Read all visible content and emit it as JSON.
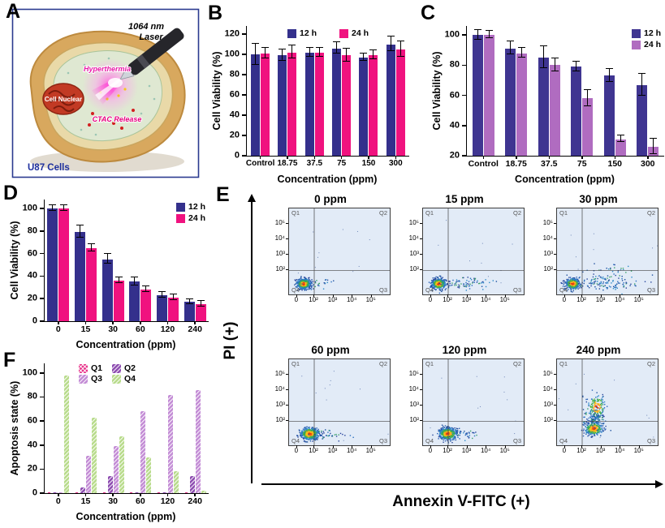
{
  "figure": {
    "panel_letters": {
      "a": "A",
      "b": "B",
      "c": "C",
      "d": "D",
      "e": "E",
      "f": "F"
    },
    "panel_a": {
      "laser_line1": "1064 nm",
      "laser_line2": "Laser",
      "hyperthermia": "Hyperthermia",
      "nucleus": "Cell Nuclear",
      "ctac": "CTAC Release",
      "cells": "U87 Cells"
    }
  },
  "chart_data": [
    {
      "id": "B",
      "type": "bar",
      "categories": [
        "Control",
        "18.75",
        "37.5",
        "75",
        "150",
        "300"
      ],
      "series": [
        {
          "name": "12 h",
          "color": "#34308c",
          "values": [
            100,
            99,
            102,
            106,
            97,
            110
          ],
          "errors": [
            10,
            5,
            4,
            5,
            3,
            7
          ]
        },
        {
          "name": "24 h",
          "color": "#f0127f",
          "values": [
            101,
            102,
            102,
            99,
            99,
            105
          ],
          "errors": [
            5,
            6,
            4,
            6,
            4,
            7
          ]
        }
      ],
      "xlabel": "Concentration (ppm)",
      "ylabel": "Cell Viability (%)",
      "ylim": [
        0,
        128
      ],
      "yticks": [
        0,
        20,
        40,
        60,
        80,
        100,
        120
      ],
      "legend_position": "top-center"
    },
    {
      "id": "C",
      "type": "bar",
      "categories": [
        "Control",
        "18.75",
        "37.5",
        "75",
        "150",
        "300"
      ],
      "series": [
        {
          "name": "12 h",
          "color": "#3f3591",
          "values": [
            100,
            91,
            85,
            79,
            73,
            67
          ],
          "errors": [
            3,
            4,
            7,
            3,
            4,
            7
          ]
        },
        {
          "name": "24 h",
          "color": "#b06cc0",
          "values": [
            100,
            88,
            80,
            58,
            31,
            26
          ],
          "errors": [
            2,
            3,
            4,
            5,
            2,
            5
          ]
        }
      ],
      "xlabel": "Concentration (ppm)",
      "ylabel": "Cell Viability (%)",
      "ylim": [
        20,
        106
      ],
      "yticks": [
        20,
        40,
        60,
        80,
        100
      ],
      "legend_position": "top-right"
    },
    {
      "id": "D",
      "type": "bar",
      "categories": [
        "0",
        "15",
        "30",
        "60",
        "120",
        "240"
      ],
      "series": [
        {
          "name": "12 h",
          "color": "#34308c",
          "values": [
            100,
            79,
            55,
            35,
            23,
            17
          ],
          "errors": [
            2,
            5,
            4,
            3,
            2,
            2
          ]
        },
        {
          "name": "24 h",
          "color": "#f0127f",
          "values": [
            100,
            65,
            36,
            28,
            21,
            15
          ],
          "errors": [
            2,
            3,
            2,
            2,
            2,
            2
          ]
        }
      ],
      "xlabel": "Concentration (ppm)",
      "ylabel": "Cell Viability (%)",
      "ylim": [
        0,
        108
      ],
      "yticks": [
        0,
        20,
        40,
        60,
        80,
        100
      ],
      "legend_position": "top-right"
    },
    {
      "id": "F",
      "type": "bar",
      "categories": [
        "0",
        "15",
        "30",
        "60",
        "120",
        "240"
      ],
      "series": [
        {
          "name": "Q1",
          "color": "#e8348b",
          "hatch": "cross",
          "values": [
            0.5,
            1,
            1,
            0.5,
            0.5,
            1
          ]
        },
        {
          "name": "Q2",
          "color": "#9050b2",
          "hatch": "diag",
          "values": [
            0.5,
            5,
            14,
            1,
            1,
            14
          ]
        },
        {
          "name": "Q3",
          "color": "#c48ed6",
          "hatch": "diag",
          "values": [
            1,
            31,
            39,
            68,
            82,
            86
          ]
        },
        {
          "name": "Q4",
          "color": "#b9dc8d",
          "hatch": "diag",
          "values": [
            98,
            63,
            47,
            30,
            18,
            2
          ]
        }
      ],
      "xlabel": "Concentration (ppm)",
      "ylabel": "Apoptosis state (%)",
      "ylim": [
        0,
        108
      ],
      "yticks": [
        0,
        20,
        40,
        60,
        80,
        100
      ],
      "legend_position": "top-left-grid"
    },
    {
      "id": "E",
      "type": "scatter",
      "xlabel": "Annexin V-FITC (+)",
      "ylabel": "PI (+)",
      "xticks": [
        "0",
        "10²",
        "10³",
        "10⁴",
        "10⁵"
      ],
      "xtick_pos": [
        0.08,
        0.25,
        0.44,
        0.63,
        0.82
      ],
      "yticks": [
        "10²",
        "10³",
        "10⁴",
        "10⁵"
      ],
      "ytick_pos": [
        0.28,
        0.46,
        0.64,
        0.82
      ],
      "quadrants": {
        "top_left": "Q1",
        "top_right": "Q2",
        "bottom_left": "Q4",
        "bottom_right": "Q3"
      },
      "quad_line": {
        "x": 0.25,
        "y": 0.28
      },
      "panels": [
        {
          "label": "0 ppm",
          "clusters": [
            {
              "x": 0.14,
              "y": 0.13,
              "sx": 0.035,
              "sy": 0.03,
              "n": 520
            },
            {
              "x": 0.32,
              "y": 0.12,
              "sx": 0.1,
              "sy": 0.03,
              "n": 20
            }
          ]
        },
        {
          "label": "15 ppm",
          "clusters": [
            {
              "x": 0.15,
              "y": 0.13,
              "sx": 0.035,
              "sy": 0.03,
              "n": 480
            },
            {
              "x": 0.42,
              "y": 0.13,
              "sx": 0.14,
              "sy": 0.035,
              "n": 70
            }
          ]
        },
        {
          "label": "30 ppm",
          "clusters": [
            {
              "x": 0.15,
              "y": 0.13,
              "sx": 0.035,
              "sy": 0.03,
              "n": 430
            },
            {
              "x": 0.5,
              "y": 0.15,
              "sx": 0.17,
              "sy": 0.05,
              "n": 130
            },
            {
              "x": 0.55,
              "y": 0.3,
              "sx": 0.12,
              "sy": 0.035,
              "n": 22
            }
          ]
        },
        {
          "label": "60 ppm",
          "clusters": [
            {
              "x": 0.2,
              "y": 0.14,
              "sx": 0.045,
              "sy": 0.035,
              "n": 520
            },
            {
              "x": 0.38,
              "y": 0.13,
              "sx": 0.09,
              "sy": 0.03,
              "n": 40
            }
          ]
        },
        {
          "label": "120 ppm",
          "clusters": [
            {
              "x": 0.24,
              "y": 0.14,
              "sx": 0.045,
              "sy": 0.035,
              "n": 520
            },
            {
              "x": 0.42,
              "y": 0.14,
              "sx": 0.07,
              "sy": 0.03,
              "n": 35
            }
          ]
        },
        {
          "label": "240 ppm",
          "clusters": [
            {
              "x": 0.36,
              "y": 0.2,
              "sx": 0.045,
              "sy": 0.04,
              "n": 300
            },
            {
              "x": 0.39,
              "y": 0.45,
              "sx": 0.045,
              "sy": 0.07,
              "n": 170
            },
            {
              "x": 0.37,
              "y": 0.32,
              "sx": 0.05,
              "sy": 0.05,
              "n": 110
            }
          ]
        }
      ]
    }
  ]
}
